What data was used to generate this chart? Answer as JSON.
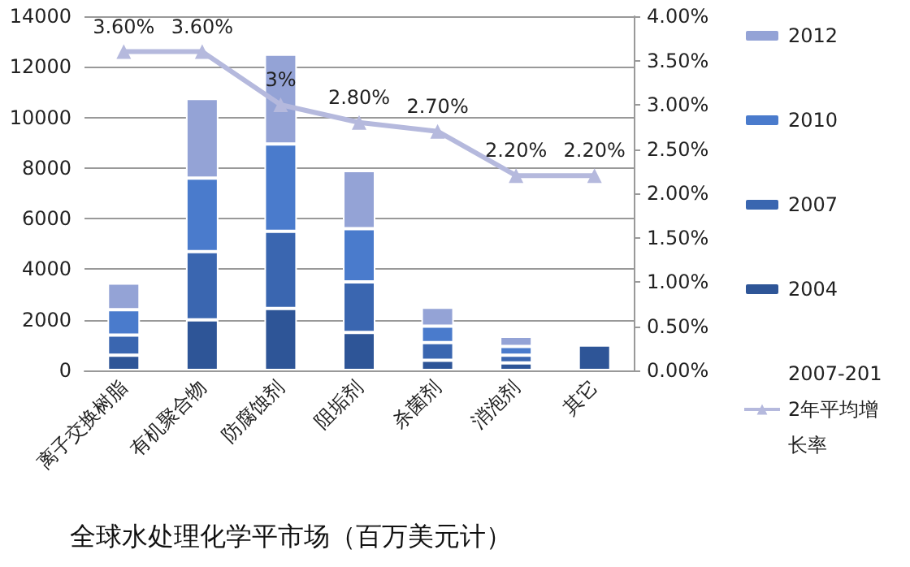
{
  "chart_data": {
    "type": "bar",
    "stacked": true,
    "title": "全球水处理化学平市场（百万美元计）",
    "categories": [
      "离子交换树脂",
      "有机聚合物",
      "防腐蚀剂",
      "阻垢剂",
      "杀菌剂",
      "消泡剂",
      "其它"
    ],
    "series": [
      {
        "name": "2004",
        "color": "#2e5597",
        "values": [
          600,
          2000,
          2450,
          1500,
          400,
          300,
          1000
        ]
      },
      {
        "name": "2007",
        "color": "#3a66b0",
        "values": [
          800,
          2700,
          3050,
          2000,
          700,
          300,
          null
        ]
      },
      {
        "name": "2010",
        "color": "#4a7bcc",
        "values": [
          1000,
          2900,
          3450,
          2100,
          650,
          350,
          null
        ]
      },
      {
        "name": "2012",
        "color": "#94a3d6",
        "values": [
          1050,
          3150,
          3550,
          2300,
          750,
          400,
          null
        ]
      },
      {
        "name": "2007-2012年平均增长率",
        "type": "line",
        "axis": "y2",
        "color": "#b5b9dd",
        "marker": "triangle",
        "values": [
          3.6,
          3.6,
          3,
          2.8,
          2.7,
          2.2,
          2.2
        ],
        "value_labels": [
          "3.60%",
          "3.60%",
          "3%",
          "2.80%",
          "2.70%",
          "2.20%",
          "2.20%"
        ]
      }
    ],
    "ylim": [
      0,
      14000
    ],
    "yticks": [
      0,
      2000,
      4000,
      6000,
      8000,
      10000,
      12000,
      14000
    ],
    "y2lim": [
      0,
      4
    ],
    "y2ticks": [
      {
        "value": 0,
        "label": "0.00%"
      },
      {
        "value": 0.5,
        "label": "0.50%"
      },
      {
        "value": 1,
        "label": "1.00%"
      },
      {
        "value": 1.5,
        "label": "1.50%"
      },
      {
        "value": 2,
        "label": "2.00%"
      },
      {
        "value": 2.5,
        "label": "2.50%"
      },
      {
        "value": 3,
        "label": "3.00%"
      },
      {
        "value": 3.5,
        "label": "3.50%"
      },
      {
        "value": 4,
        "label": "4.00%"
      }
    ],
    "grid": "y",
    "legend": "right"
  }
}
